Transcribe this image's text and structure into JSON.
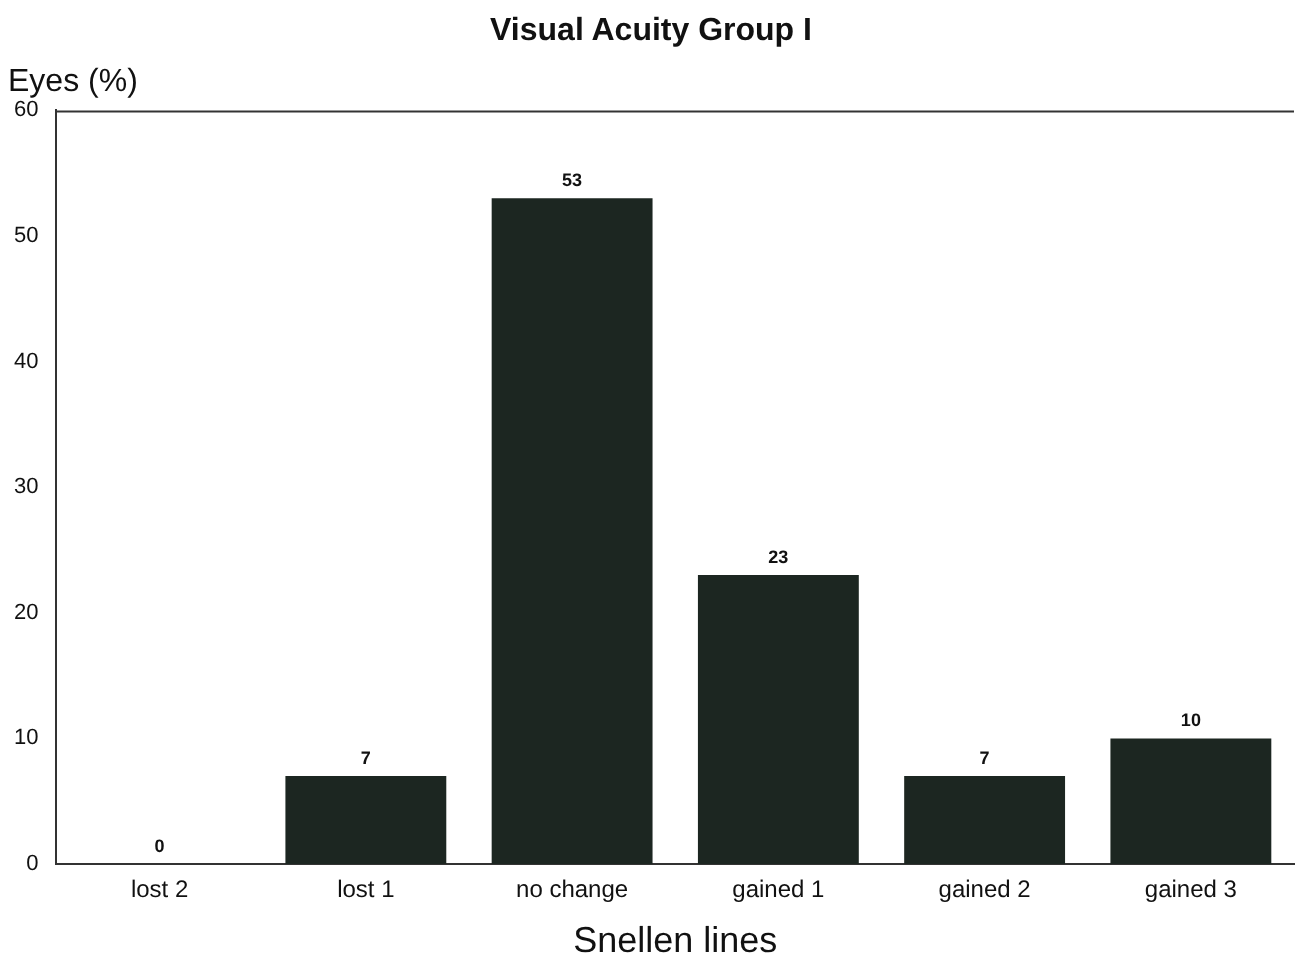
{
  "chart_data": {
    "type": "bar",
    "title": "Visual Acuity Group I",
    "xlabel": "Snellen lines",
    "ylabel": "Eyes (%)",
    "categories": [
      "lost 2",
      "lost 1",
      "no change",
      "gained 1",
      "gained 2",
      "gained 3"
    ],
    "values": [
      0,
      7,
      53,
      23,
      7,
      10
    ],
    "color": "#1c2621",
    "ylim": [
      0,
      60
    ],
    "yticks": [
      0,
      10,
      20,
      30,
      40,
      50,
      60
    ],
    "grid": false,
    "data_labels": true
  }
}
